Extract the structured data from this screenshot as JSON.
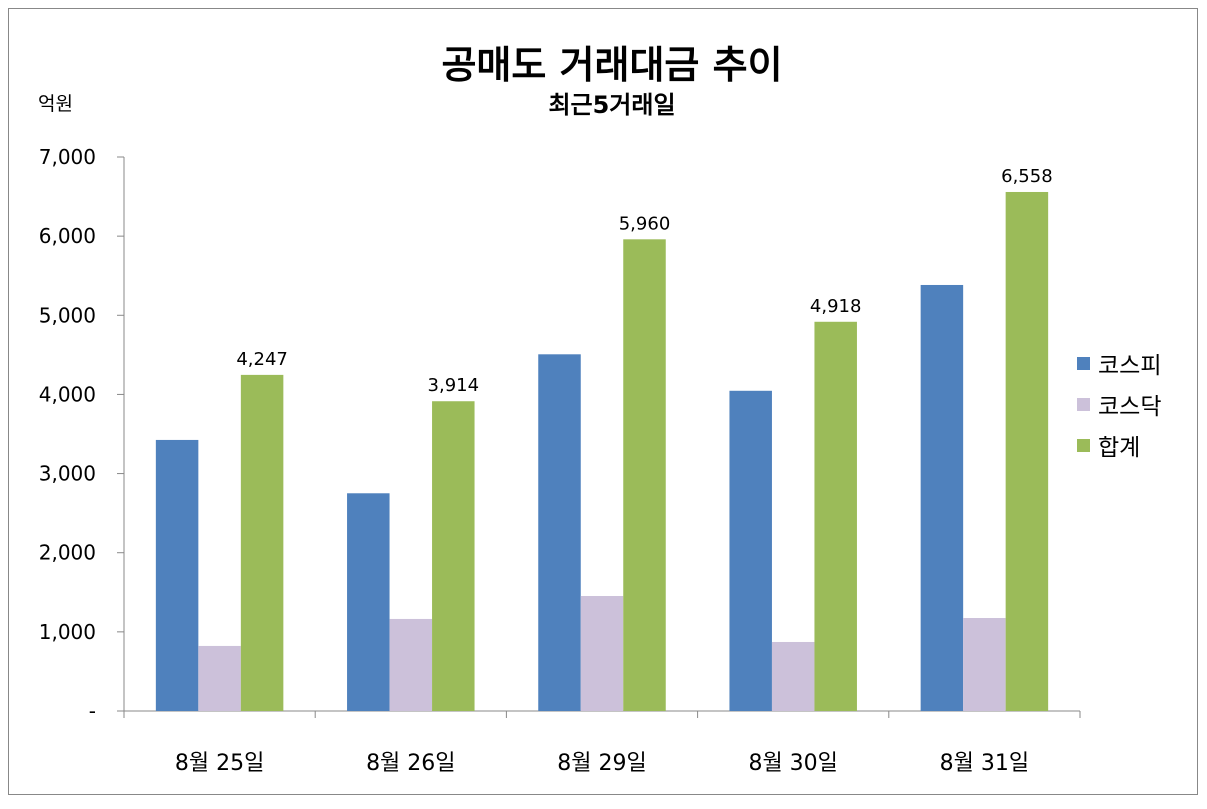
{
  "chart_data": {
    "type": "bar",
    "title": "공매도 거래대금 추이",
    "subtitle": "최근5거래일",
    "ylabel": "억원",
    "xlabel": "",
    "ylim": [
      0,
      7000
    ],
    "yticks": [
      0,
      1000,
      2000,
      3000,
      4000,
      5000,
      6000,
      7000
    ],
    "ytick_labels": [
      "-",
      "1,000",
      "2,000",
      "3,000",
      "4,000",
      "5,000",
      "6,000",
      "7,000"
    ],
    "grid": false,
    "legend_position": "right",
    "categories": [
      "8월 25일",
      "8월 26일",
      "8월 29일",
      "8월 30일",
      "8월 31일"
    ],
    "series": [
      {
        "name": "코스피",
        "color": "#4f81bd",
        "values": [
          3425,
          2751,
          4507,
          4046,
          5383
        ]
      },
      {
        "name": "코스닥",
        "color": "#ccc1da",
        "values": [
          822,
          1163,
          1453,
          872,
          1175
        ]
      },
      {
        "name": "합계",
        "color": "#9bbb59",
        "values": [
          4247,
          3914,
          5960,
          4918,
          6558
        ],
        "data_labels": [
          "4,247",
          "3,914",
          "5,960",
          "4,918",
          "6,558"
        ]
      }
    ]
  }
}
